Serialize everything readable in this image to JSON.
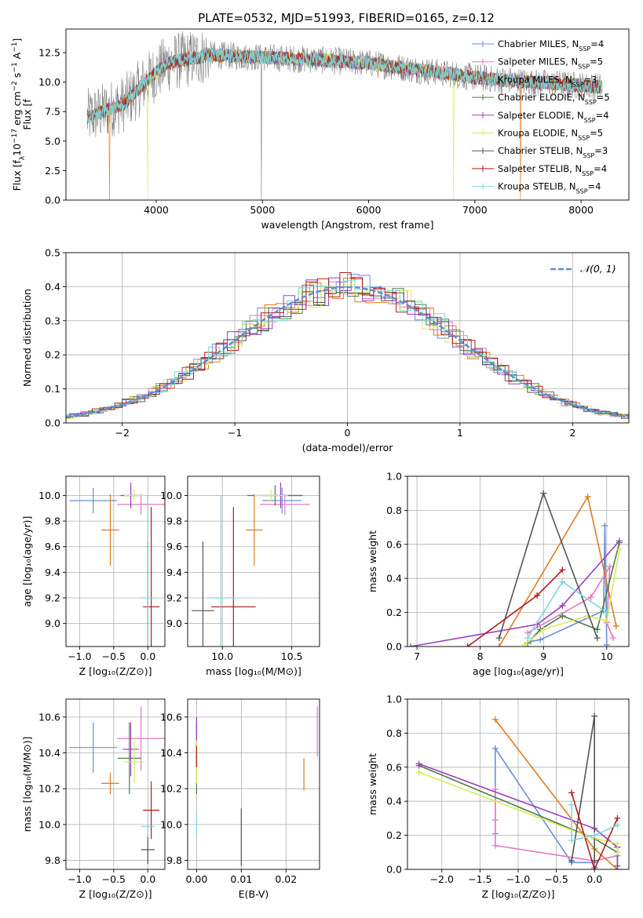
{
  "figure_title": "PLATE=0532, MJD=51993, FIBERID=0165, z=0.12",
  "colors": {
    "c1": "#6a8fd8",
    "c2": "#e377c2",
    "c3": "#e07b20",
    "c4": "#4a7f4a",
    "c5": "#9a3fbf",
    "c6": "#d9ea5a",
    "c7": "#555555",
    "c8": "#b21a1a",
    "c9": "#7fd6d8",
    "gauss": "#5b8fd4"
  },
  "chart_data": [
    {
      "type": "line",
      "id": "spectrum",
      "xlabel": "wavelength [Angstrom, rest frame]",
      "ylabel": "Flux [f",
      "ylabel_parts": [
        "Flux [f",
        "λ",
        "10",
        "−17",
        " erg cm",
        "−2",
        " s",
        "−1",
        " A",
        "−1",
        "]"
      ],
      "xlim": [
        3150,
        8450
      ],
      "ylim": [
        0,
        14.5
      ],
      "xticks": [
        4000,
        5000,
        6000,
        7000,
        8000
      ],
      "yticks": [
        0.0,
        2.5,
        5.0,
        7.5,
        10.0,
        12.5
      ],
      "legend_position": "top-right",
      "legend": [
        {
          "label": "Chabrier MILES, N",
          "sub": "SSP",
          "value": "=4",
          "color": "c1"
        },
        {
          "label": "Salpeter MILES, N",
          "sub": "SSP",
          "value": "=5",
          "color": "c2"
        },
        {
          "label": "Kroupa MILES, N",
          "sub": "SSP",
          "value": "=3",
          "color": "c3"
        },
        {
          "label": "Chabrier ELODIE, N",
          "sub": "SSP",
          "value": "=5",
          "color": "c4"
        },
        {
          "label": "Salpeter ELODIE, N",
          "sub": "SSP",
          "value": "=4",
          "color": "c5"
        },
        {
          "label": "Kroupa ELODIE, N",
          "sub": "SSP",
          "value": "=5",
          "color": "c6"
        },
        {
          "label": "Chabrier STELIB, N",
          "sub": "SSP",
          "value": "=3",
          "color": "c7"
        },
        {
          "label": "Salpeter STELIB, N",
          "sub": "SSP",
          "value": "=4",
          "color": "c8"
        },
        {
          "label": "Kroupa STELIB, N",
          "sub": "SSP",
          "value": "=4",
          "color": "c9"
        }
      ],
      "data_range": [
        3350,
        8200
      ],
      "continuum": [
        [
          3350,
          7.0
        ],
        [
          3700,
          8.2
        ],
        [
          3900,
          10.0
        ],
        [
          4100,
          11.6
        ],
        [
          4500,
          12.3
        ],
        [
          5000,
          12.1
        ],
        [
          5500,
          11.9
        ],
        [
          6000,
          11.6
        ],
        [
          6500,
          11.0
        ],
        [
          7000,
          10.4
        ],
        [
          7500,
          10.0
        ],
        [
          8200,
          9.6
        ]
      ],
      "model_dips": [
        {
          "series": "c3",
          "x": 3560,
          "y": 0.0
        },
        {
          "series": "c6",
          "x": 3920,
          "y": 0.0
        },
        {
          "series": "c6",
          "x": 6800,
          "y": 0.0
        },
        {
          "series": "c3",
          "x": 7430,
          "y": 0.0
        }
      ],
      "data_spikes": [
        {
          "x": 4990,
          "y": 0.0
        }
      ]
    },
    {
      "type": "bar",
      "id": "residuals",
      "xlabel": "(data-model)/error",
      "ylabel": "Normed distribution",
      "xlim": [
        -2.5,
        2.5
      ],
      "ylim": [
        0,
        0.5
      ],
      "xticks": [
        -2,
        -1,
        0,
        1,
        2
      ],
      "yticks": [
        0.0,
        0.1,
        0.2,
        0.3,
        0.4,
        0.5
      ],
      "legend_position": "top-right",
      "gaussian_label": "𝒩(0, 1)",
      "bin_width": 0.1,
      "series_colors": [
        "c1",
        "c2",
        "c3",
        "c4",
        "c5",
        "c6",
        "c7",
        "c8",
        "c9"
      ]
    },
    {
      "type": "scatter",
      "id": "age-vs-Z",
      "xlabel": "Z [log₁₀(Z/Z⊙)]",
      "ylabel": "age  [log₁₀(age/yr)]",
      "xlim": [
        -1.2,
        0.25
      ],
      "ylim": [
        8.82,
        10.15
      ],
      "xticks": [
        -1.0,
        -0.5,
        0.0
      ],
      "xticklabels": [
        "−1.0",
        "−0.5",
        "0.0"
      ],
      "yticks": [
        9.0,
        9.2,
        9.4,
        9.6,
        9.8,
        10.0
      ],
      "points": [
        {
          "color": "c1",
          "x": -0.8,
          "xerr": 0.35,
          "y": 9.96,
          "yerr": 0.1
        },
        {
          "color": "c2",
          "x": -0.1,
          "xerr": 0.35,
          "y": 9.93,
          "yerr": 0.08
        },
        {
          "color": "c3",
          "x": -0.55,
          "xerr": 0.13,
          "y": 9.73,
          "yerr": 0.28
        },
        {
          "color": "c4",
          "x": -0.25,
          "xerr": 0.15,
          "y": 10.0,
          "yerr": 0.08
        },
        {
          "color": "c5",
          "x": -0.25,
          "xerr": 0.12,
          "y": 10.0,
          "yerr": 0.1
        },
        {
          "color": "c6",
          "x": -0.2,
          "xerr": 0.15,
          "y": 10.0,
          "yerr": 0.05
        },
        {
          "color": "c7",
          "x": 0.0,
          "xerr": 0.0,
          "y": 9.1,
          "yerr": 0.54
        },
        {
          "color": "c8",
          "x": 0.05,
          "xerr": 0.12,
          "y": 9.13,
          "yerr": 0.78
        },
        {
          "color": "c9",
          "x": 0.0,
          "xerr": 0.1,
          "y": 9.2,
          "yerr": 0.8
        }
      ]
    },
    {
      "type": "scatter",
      "id": "age-vs-mass",
      "xlabel": "mass [log₁₀(M/M⊙)]",
      "ylabel": "",
      "xlim": [
        9.75,
        10.7
      ],
      "ylim": [
        8.82,
        10.15
      ],
      "xticks": [
        10.0,
        10.5
      ],
      "xticklabels": [
        "10.0",
        "10.5"
      ],
      "yticks": [
        9.0,
        9.2,
        9.4,
        9.6,
        9.8,
        10.0
      ],
      "points": [
        {
          "color": "c1",
          "x": 10.43,
          "xerr": 0.14,
          "y": 9.96,
          "yerr": 0.1
        },
        {
          "color": "c2",
          "x": 10.45,
          "xerr": 0.18,
          "y": 9.93,
          "yerr": 0.08
        },
        {
          "color": "c3",
          "x": 10.23,
          "xerr": 0.06,
          "y": 9.73,
          "yerr": 0.28
        },
        {
          "color": "c4",
          "x": 10.38,
          "xerr": 0.2,
          "y": 10.0,
          "yerr": 0.08
        },
        {
          "color": "c5",
          "x": 10.42,
          "xerr": 0.15,
          "y": 10.0,
          "yerr": 0.1
        },
        {
          "color": "c6",
          "x": 10.35,
          "xerr": 0.12,
          "y": 10.0,
          "yerr": 0.05
        },
        {
          "color": "c7",
          "x": 9.86,
          "xerr": 0.08,
          "y": 9.1,
          "yerr": 0.54
        },
        {
          "color": "c8",
          "x": 10.08,
          "xerr": 0.16,
          "y": 9.13,
          "yerr": 0.78
        },
        {
          "color": "c9",
          "x": 9.99,
          "xerr": 0.1,
          "y": 9.2,
          "yerr": 0.8
        }
      ]
    },
    {
      "type": "line",
      "id": "mass-weight-vs-age",
      "xlabel": "age  [log₁₀(age/yr)]",
      "ylabel": "mass weight",
      "xlim": [
        6.85,
        10.35
      ],
      "ylim": [
        0,
        1
      ],
      "xticks": [
        7,
        8,
        9,
        10
      ],
      "yticks": [
        0.0,
        0.2,
        0.4,
        0.6,
        0.8,
        1.0
      ],
      "series": [
        {
          "color": "c1",
          "x": [
            8.8,
            8.95,
            9.95,
            9.97,
            10.0
          ],
          "y": [
            0.03,
            0.04,
            0.21,
            0.71,
            0.01
          ]
        },
        {
          "color": "c2",
          "x": [
            8.75,
            9.75,
            10.05,
            10.0,
            10.1
          ],
          "y": [
            0.08,
            0.29,
            0.47,
            0.14,
            0.05
          ]
        },
        {
          "color": "c3",
          "x": [
            8.3,
            9.7,
            10.15
          ],
          "y": [
            0.0,
            0.88,
            0.12
          ]
        },
        {
          "color": "c4",
          "x": [
            8.75,
            8.95,
            9.3,
            9.85,
            10.2
          ],
          "y": [
            0.02,
            0.1,
            0.18,
            0.1,
            0.61
          ]
        },
        {
          "color": "c5",
          "x": [
            6.9,
            8.9,
            9.3,
            10.2
          ],
          "y": [
            0.0,
            0.13,
            0.24,
            0.62
          ]
        },
        {
          "color": "c6",
          "x": [
            8.7,
            9.0,
            9.7,
            10.0,
            10.2
          ],
          "y": [
            0.01,
            0.1,
            0.18,
            0.15,
            0.57
          ]
        },
        {
          "color": "c7",
          "x": [
            8.3,
            9.0,
            9.85
          ],
          "y": [
            0.05,
            0.9,
            0.05
          ]
        },
        {
          "color": "c8",
          "x": [
            7.8,
            8.9,
            9.3
          ],
          "y": [
            0.0,
            0.3,
            0.45
          ]
        },
        {
          "color": "c9",
          "x": [
            8.75,
            9.3,
            10.0
          ],
          "y": [
            0.05,
            0.38,
            0.2
          ]
        }
      ]
    },
    {
      "type": "scatter",
      "id": "mass-vs-Z",
      "xlabel": "Z [log₁₀(Z/Z⊙)]",
      "ylabel": "mass [log₁₀(M/M⊙)]",
      "xlim": [
        -1.2,
        0.25
      ],
      "ylim": [
        9.75,
        10.7
      ],
      "xticks": [
        -1.0,
        -0.5,
        0.0
      ],
      "xticklabels": [
        "−1.0",
        "−0.5",
        "0.0"
      ],
      "yticks": [
        9.8,
        10.0,
        10.2,
        10.4,
        10.6
      ],
      "points": [
        {
          "color": "c1",
          "x": -0.8,
          "xerr": 0.35,
          "y": 10.43,
          "yerr": 0.14
        },
        {
          "color": "c2",
          "x": -0.1,
          "xerr": 0.35,
          "y": 10.48,
          "yerr": 0.18
        },
        {
          "color": "c3",
          "x": -0.55,
          "xerr": 0.13,
          "y": 10.23,
          "yerr": 0.06
        },
        {
          "color": "c4",
          "x": -0.27,
          "xerr": 0.17,
          "y": 10.37,
          "yerr": 0.2
        },
        {
          "color": "c5",
          "x": -0.25,
          "xerr": 0.12,
          "y": 10.42,
          "yerr": 0.15
        },
        {
          "color": "c6",
          "x": -0.2,
          "xerr": 0.15,
          "y": 10.35,
          "yerr": 0.12
        },
        {
          "color": "c7",
          "x": 0.0,
          "xerr": 0.1,
          "y": 9.86,
          "yerr": 0.08
        },
        {
          "color": "c8",
          "x": 0.05,
          "xerr": 0.12,
          "y": 10.08,
          "yerr": 0.16
        },
        {
          "color": "c9",
          "x": 0.0,
          "xerr": 0.1,
          "y": 9.99,
          "yerr": 0.06
        }
      ]
    },
    {
      "type": "scatter",
      "id": "mass-vs-ebv",
      "xlabel": "E(B-V)",
      "ylabel": "",
      "xlim": [
        -0.002,
        0.0275
      ],
      "ylim": [
        9.75,
        10.7
      ],
      "xticks": [
        0.0,
        0.01,
        0.02
      ],
      "xticklabels": [
        "0.00",
        "0.01",
        "0.02"
      ],
      "yticks": [
        9.8,
        10.0,
        10.2,
        10.4,
        10.6
      ],
      "points": [
        {
          "color": "c1",
          "x": 0.0,
          "xerr": 0.0,
          "y": 10.43,
          "yerr": 0.14
        },
        {
          "color": "c2",
          "x": 0.027,
          "xerr": 0.0,
          "y": 10.52,
          "yerr": 0.14
        },
        {
          "color": "c3",
          "x": 0.024,
          "xerr": 0.0,
          "y": 10.28,
          "yerr": 0.09
        },
        {
          "color": "c4",
          "x": 0.0,
          "xerr": 0.0,
          "y": 10.37,
          "yerr": 0.2
        },
        {
          "color": "c5",
          "x": 0.0,
          "xerr": 0.0,
          "y": 10.5,
          "yerr": 0.1
        },
        {
          "color": "c6",
          "x": 0.0,
          "xerr": 0.0,
          "y": 10.35,
          "yerr": 0.12
        },
        {
          "color": "c7",
          "x": 0.01,
          "xerr": 0.0,
          "y": 9.93,
          "yerr": 0.16
        },
        {
          "color": "c8",
          "x": 0.0,
          "xerr": 0.0,
          "y": 10.38,
          "yerr": 0.06
        },
        {
          "color": "c9",
          "x": 0.0,
          "xerr": 0.0,
          "y": 10.0,
          "yerr": 0.06
        }
      ]
    },
    {
      "type": "line",
      "id": "mass-weight-vs-Z",
      "xlabel": "Z [log₁₀(Z/Z⊙)]",
      "ylabel": "mass weight",
      "xlim": [
        -2.45,
        0.45
      ],
      "ylim": [
        0,
        1
      ],
      "xticks": [
        -2.0,
        -1.5,
        -1.0,
        -0.5,
        0.0
      ],
      "xticklabels": [
        "−2.0",
        "−1.5",
        "−1.0",
        "−0.5",
        "0.0"
      ],
      "yticks": [
        0.0,
        0.2,
        0.4,
        0.6,
        0.8,
        1.0
      ],
      "series": [
        {
          "color": "c1",
          "x": [
            -1.3,
            -1.3,
            -0.3,
            0.0,
            0.0
          ],
          "y": [
            0.21,
            0.71,
            0.04,
            0.04,
            0.01
          ]
        },
        {
          "color": "c2",
          "x": [
            -1.3,
            -1.3,
            -1.3,
            0.0,
            0.3
          ],
          "y": [
            0.29,
            0.47,
            0.14,
            0.05,
            0.08
          ]
        },
        {
          "color": "c3",
          "x": [
            -1.3,
            0.0,
            0.3
          ],
          "y": [
            0.88,
            0.12,
            0.0
          ]
        },
        {
          "color": "c4",
          "x": [
            -2.3,
            0.0,
            0.3,
            0.3
          ],
          "y": [
            0.61,
            0.18,
            0.1,
            0.02
          ]
        },
        {
          "color": "c5",
          "x": [
            -2.3,
            0.0,
            0.3,
            0.3
          ],
          "y": [
            0.62,
            0.24,
            0.13,
            0.0
          ]
        },
        {
          "color": "c6",
          "x": [
            -2.3,
            0.0,
            0.3,
            0.3
          ],
          "y": [
            0.57,
            0.18,
            0.15,
            0.1
          ]
        },
        {
          "color": "c7",
          "x": [
            -0.3,
            0.0,
            0.0
          ],
          "y": [
            0.05,
            0.9,
            0.05
          ]
        },
        {
          "color": "c8",
          "x": [
            -0.3,
            0.0,
            0.3
          ],
          "y": [
            0.45,
            0.0,
            0.3
          ]
        },
        {
          "color": "c9",
          "x": [
            -0.3,
            -0.3,
            0.0,
            0.3
          ],
          "y": [
            0.38,
            0.17,
            0.2,
            0.26
          ]
        }
      ]
    }
  ]
}
